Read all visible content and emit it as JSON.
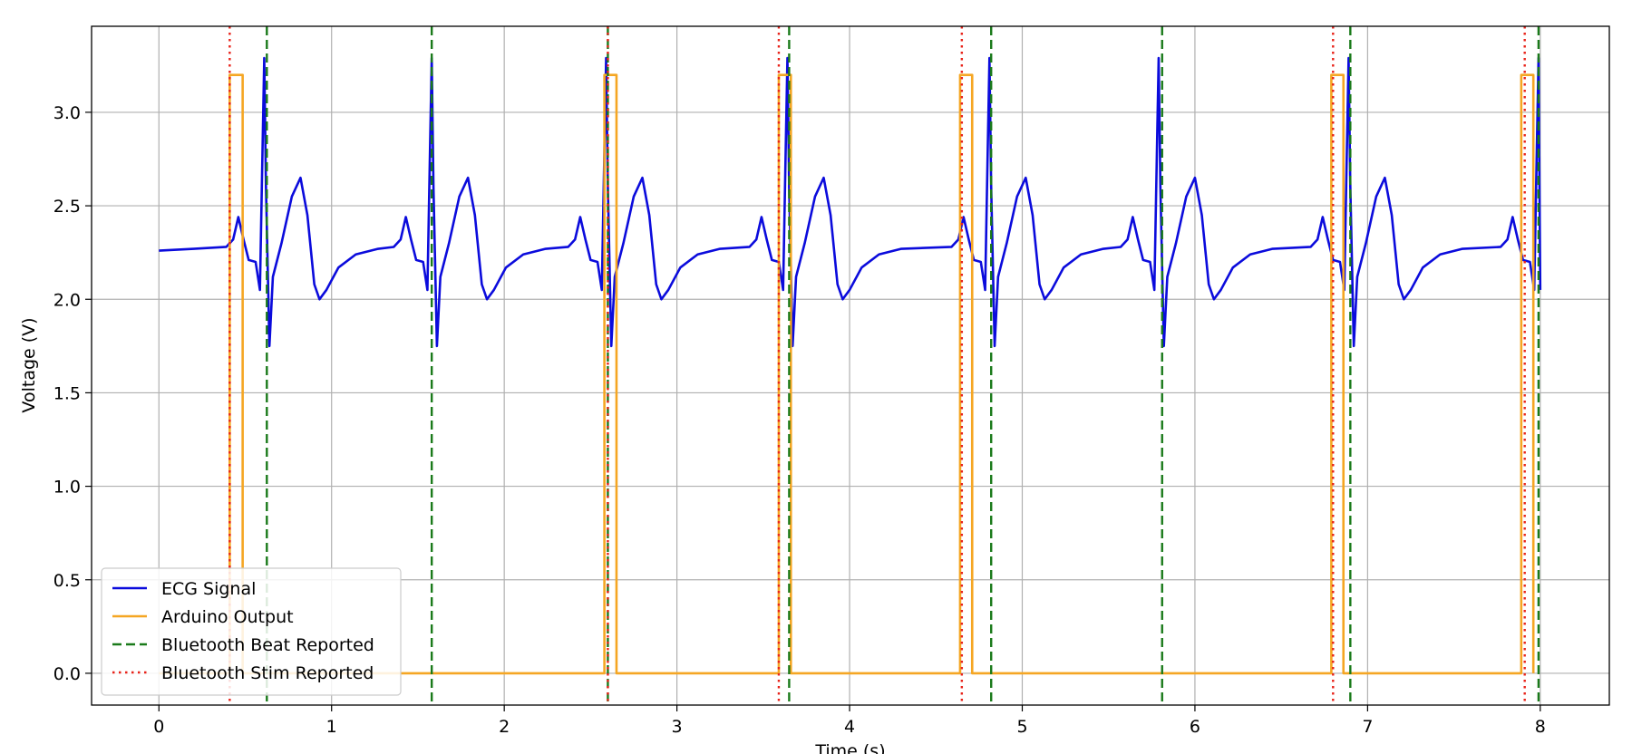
{
  "chart_data": {
    "type": "line",
    "xlabel": "Time (s)",
    "ylabel": "Voltage (V)",
    "xlim": [
      -0.39,
      8.4
    ],
    "ylim": [
      -0.17,
      3.46
    ],
    "xticks": [
      0,
      1,
      2,
      3,
      4,
      5,
      6,
      7,
      8
    ],
    "yticks": [
      {
        "value": 0,
        "label": "0.0"
      },
      0.5,
      {
        "value": 1,
        "label": "1.0"
      },
      1.5,
      {
        "value": 2,
        "label": "2.0"
      },
      2.5,
      {
        "value": 3,
        "label": "3.0"
      }
    ],
    "grid": true,
    "legend": "lower left",
    "series": [
      {
        "name": "ECG Signal",
        "color": "#0b0bdc",
        "x": [
          0,
          0.2,
          0.39,
          0.43,
          0.46,
          0.49,
          0.52,
          0.56,
          0.585,
          0.6,
          0.61,
          0.62,
          0.64,
          0.66,
          0.71,
          0.77,
          0.82,
          0.86,
          0.9,
          0.93,
          0.97,
          1.04,
          1.14,
          1.27,
          1.36,
          1.4,
          1.43,
          1.46,
          1.49,
          1.53,
          1.555,
          1.57,
          1.58,
          1.59,
          1.61,
          1.63,
          1.68,
          1.74,
          1.79,
          1.83,
          1.87,
          1.9,
          1.94,
          2.01,
          2.11,
          2.24,
          2.37,
          2.41,
          2.44,
          2.47,
          2.5,
          2.54,
          2.565,
          2.58,
          2.59,
          2.6,
          2.62,
          2.64,
          2.69,
          2.75,
          2.8,
          2.84,
          2.88,
          2.91,
          2.95,
          3.02,
          3.12,
          3.25,
          3.42,
          3.46,
          3.49,
          3.52,
          3.55,
          3.59,
          3.615,
          3.63,
          3.64,
          3.65,
          3.67,
          3.69,
          3.74,
          3.8,
          3.85,
          3.89,
          3.93,
          3.96,
          4.0,
          4.07,
          4.17,
          4.3,
          4.59,
          4.63,
          4.66,
          4.69,
          4.72,
          4.76,
          4.785,
          4.8,
          4.81,
          4.82,
          4.84,
          4.86,
          4.91,
          4.97,
          5.02,
          5.06,
          5.1,
          5.13,
          5.17,
          5.24,
          5.34,
          5.47,
          5.57,
          5.61,
          5.64,
          5.67,
          5.7,
          5.74,
          5.765,
          5.78,
          5.79,
          5.8,
          5.82,
          5.84,
          5.89,
          5.95,
          6.0,
          6.04,
          6.08,
          6.11,
          6.15,
          6.22,
          6.32,
          6.45,
          6.67,
          6.71,
          6.74,
          6.77,
          6.8,
          6.84,
          6.865,
          6.88,
          6.89,
          6.9,
          6.92,
          6.94,
          6.99,
          7.05,
          7.1,
          7.14,
          7.18,
          7.21,
          7.25,
          7.32,
          7.42,
          7.55,
          7.77,
          7.81,
          7.84,
          7.87,
          7.9,
          7.94,
          7.965,
          7.98,
          7.99,
          8.0
        ],
        "values": [
          2.26,
          2.27,
          2.28,
          2.32,
          2.44,
          2.32,
          2.21,
          2.2,
          2.05,
          2.8,
          3.29,
          2.6,
          1.75,
          2.12,
          2.3,
          2.55,
          2.65,
          2.45,
          2.08,
          2.0,
          2.05,
          2.17,
          2.24,
          2.27,
          2.28,
          2.32,
          2.44,
          2.32,
          2.21,
          2.2,
          2.05,
          2.8,
          3.29,
          2.6,
          1.75,
          2.12,
          2.3,
          2.55,
          2.65,
          2.45,
          2.08,
          2.0,
          2.05,
          2.17,
          2.24,
          2.27,
          2.28,
          2.32,
          2.44,
          2.32,
          2.21,
          2.2,
          2.05,
          2.8,
          3.29,
          2.6,
          1.75,
          2.12,
          2.3,
          2.55,
          2.65,
          2.45,
          2.08,
          2.0,
          2.05,
          2.17,
          2.24,
          2.27,
          2.28,
          2.32,
          2.44,
          2.32,
          2.21,
          2.2,
          2.05,
          2.8,
          3.29,
          2.6,
          1.75,
          2.12,
          2.3,
          2.55,
          2.65,
          2.45,
          2.08,
          2.0,
          2.05,
          2.17,
          2.24,
          2.27,
          2.28,
          2.32,
          2.44,
          2.32,
          2.21,
          2.2,
          2.05,
          2.8,
          3.29,
          2.6,
          1.75,
          2.12,
          2.3,
          2.55,
          2.65,
          2.45,
          2.08,
          2.0,
          2.05,
          2.17,
          2.24,
          2.27,
          2.28,
          2.32,
          2.44,
          2.32,
          2.21,
          2.2,
          2.05,
          2.8,
          3.29,
          2.6,
          1.75,
          2.12,
          2.3,
          2.55,
          2.65,
          2.45,
          2.08,
          2.0,
          2.05,
          2.17,
          2.24,
          2.27,
          2.28,
          2.32,
          2.44,
          2.32,
          2.21,
          2.2,
          2.05,
          2.8,
          3.29,
          2.6,
          1.75,
          2.12,
          2.3,
          2.55,
          2.65,
          2.45,
          2.08,
          2.0,
          2.05,
          2.17,
          2.24,
          2.27,
          2.28,
          2.32,
          2.44,
          2.32,
          2.21,
          2.2,
          2.05,
          2.8,
          3.29,
          2.05
        ]
      },
      {
        "name": "Arduino Output",
        "color": "#f5a623",
        "x": [
          0,
          0.41,
          0.41,
          0.485,
          0.485,
          2.58,
          2.58,
          2.65,
          2.65,
          3.59,
          3.59,
          3.66,
          3.66,
          4.64,
          4.64,
          4.71,
          4.71,
          6.79,
          6.79,
          6.86,
          6.86,
          7.89,
          7.89,
          7.96,
          7.96
        ],
        "values": [
          0,
          0,
          3.2,
          3.2,
          0,
          0,
          3.2,
          3.2,
          0,
          0,
          3.2,
          3.2,
          0,
          0,
          3.2,
          3.2,
          0,
          0,
          3.2,
          3.2,
          0,
          0,
          3.2,
          3.2,
          0
        ]
      }
    ],
    "vlines": [
      {
        "name": "Bluetooth Beat Reported",
        "color": "#1a7a1a",
        "style": "dashed",
        "x": [
          0.625,
          1.58,
          2.6,
          3.65,
          4.82,
          5.81,
          6.9,
          7.99
        ]
      },
      {
        "name": "Bluetooth Stim Reported",
        "color": "#e8231a",
        "style": "dotted",
        "x": [
          0.41,
          2.6,
          3.59,
          4.65,
          6.8,
          7.91
        ]
      }
    ]
  }
}
